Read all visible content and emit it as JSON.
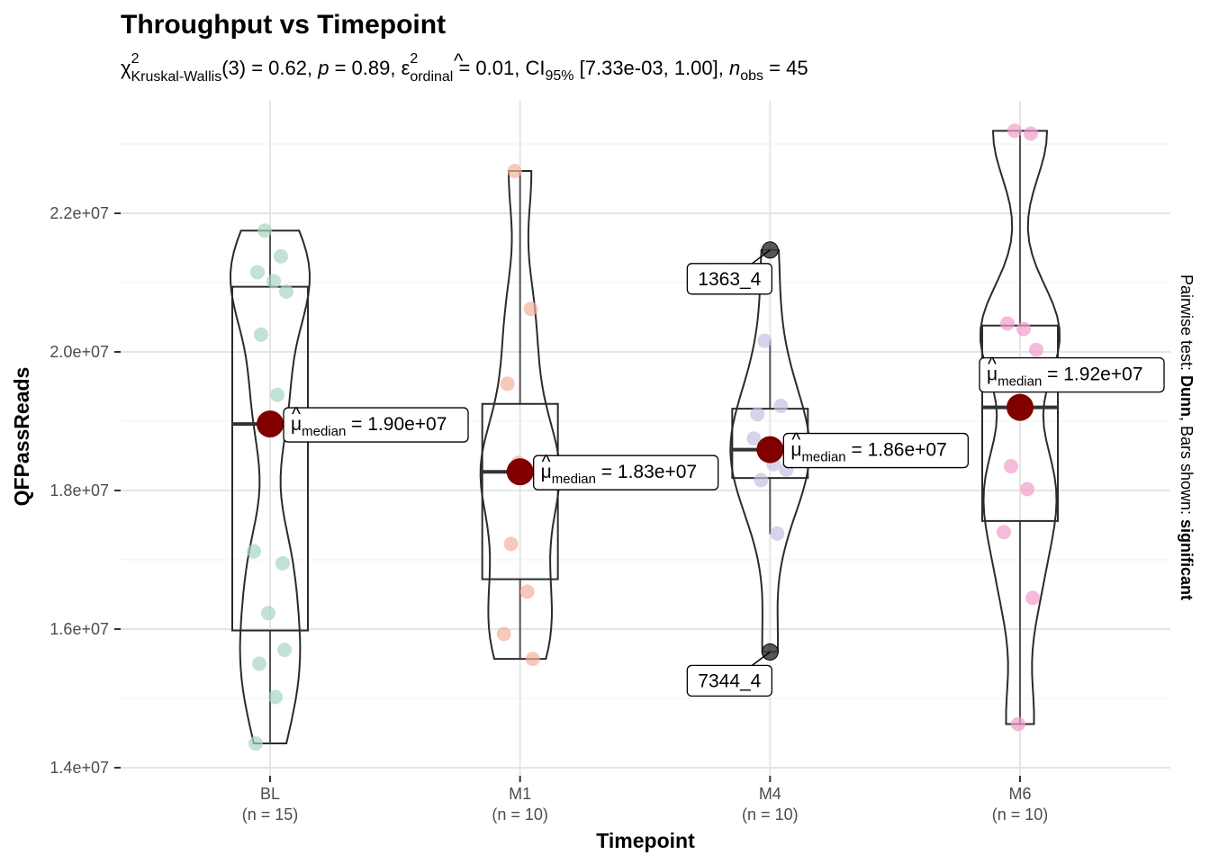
{
  "chart_data": {
    "type": "violin-box-scatter",
    "title": "Throughput vs Timepoint",
    "subtitle": {
      "stat_symbol": "χ",
      "stat_sup": "2",
      "stat_sub": "Kruskal-Wallis",
      "df": "(3)",
      "stat_value": " = 0.62, ",
      "p_symbol": "p",
      "p_value": " = 0.89, ",
      "effect_symbol": "ε",
      "effect_sup": "2",
      "effect_sub": "ordinal",
      "effect_value": " = 0.01, CI",
      "ci_sub": "95%",
      "ci_value": " [7.33e-03, 1.00], ",
      "n_symbol": "n",
      "n_sub": "obs",
      "n_value": " = 45"
    },
    "xlabel": "Timepoint",
    "ylabel": "QFPassReads",
    "ylim": [
      13700000,
      23400000
    ],
    "yticks": [
      14000000,
      16000000,
      18000000,
      20000000,
      22000000
    ],
    "ytick_labels": [
      "1.4e+07",
      "1.6e+07",
      "1.8e+07",
      "2.0e+07",
      "2.2e+07"
    ],
    "grid": true,
    "legend": "none",
    "caption_parts": [
      {
        "text": "Pairwise test: ",
        "bold": false
      },
      {
        "text": "Dunn",
        "bold": true
      },
      {
        "text": ", Bars shown: ",
        "bold": false
      },
      {
        "text": "significant",
        "bold": true
      }
    ],
    "median_label_prefix": "μ",
    "median_label_sub": "median",
    "groups": [
      {
        "name": "BL",
        "n_label": "(n = 15)",
        "color": "#A8D5C1",
        "box": {
          "q1": 15980000,
          "median": 18960000,
          "q3": 20940000,
          "whisker_low": 14350000,
          "whisker_high": 21750000
        },
        "median": 18960000,
        "median_label": " = 1.90e+07",
        "points": [
          21750000,
          21380000,
          21150000,
          21020000,
          20870000,
          20250000,
          19380000,
          17120000,
          16950000,
          16230000,
          15700000,
          15500000,
          15020000,
          14350000,
          18960000
        ],
        "outliers": []
      },
      {
        "name": "M1",
        "n_label": "(n = 10)",
        "color": "#F2B49B",
        "box": {
          "q1": 16720000,
          "median": 18270000,
          "q3": 19250000,
          "whisker_low": 15570000,
          "whisker_high": 22610000
        },
        "median": 18270000,
        "median_label": " = 1.83e+07",
        "points": [
          22610000,
          20620000,
          19540000,
          18300000,
          18250000,
          17230000,
          16540000,
          15930000,
          15570000,
          18400000
        ],
        "outliers": []
      },
      {
        "name": "M4",
        "n_label": "(n = 10)",
        "color": "#C5C2E2",
        "box": {
          "q1": 18180000,
          "median": 18590000,
          "q3": 19180000,
          "whisker_low": 17370000,
          "whisker_high": 20160000
        },
        "median": 18590000,
        "median_label": " = 1.86e+07",
        "points": [
          20160000,
          19220000,
          19100000,
          18380000,
          18300000,
          18150000,
          17380000,
          18750000
        ],
        "outliers": [
          {
            "value": 21470000,
            "label": "1363_4"
          },
          {
            "value": 15670000,
            "label": "7344_4"
          }
        ]
      },
      {
        "name": "M6",
        "n_label": "(n = 10)",
        "color": "#F29DCB",
        "box": {
          "q1": 17560000,
          "median": 19200000,
          "q3": 20380000,
          "whisker_low": 14630000,
          "whisker_high": 23190000
        },
        "median": 19200000,
        "median_label": " = 1.92e+07",
        "points": [
          23190000,
          23150000,
          20410000,
          20330000,
          20030000,
          18350000,
          18020000,
          17400000,
          16450000,
          14630000
        ],
        "outliers": []
      }
    ]
  }
}
